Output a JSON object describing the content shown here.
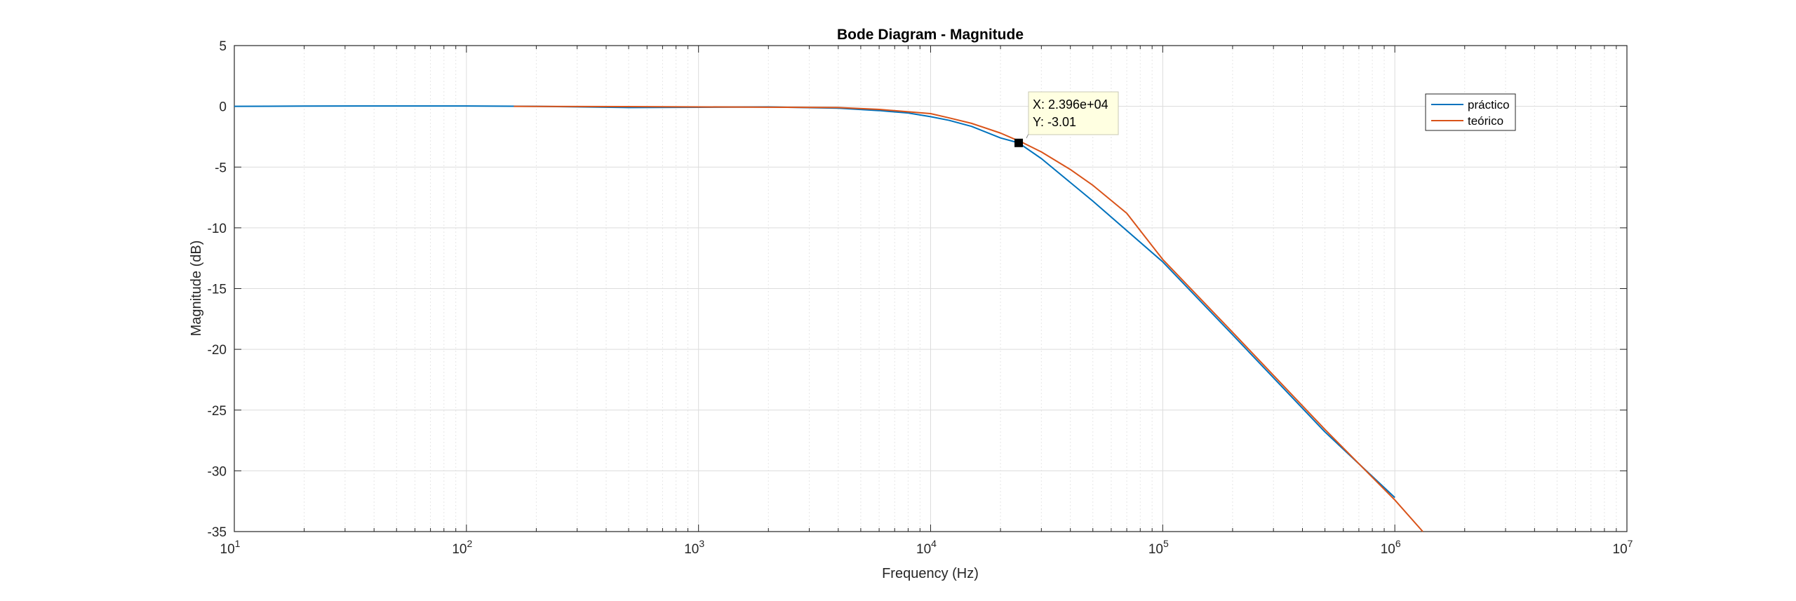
{
  "chart_data": {
    "type": "line",
    "title": "Bode Diagram - Magnitude",
    "xlabel": "Frequency (Hz)",
    "ylabel": "Magnitude (dB)",
    "xscale": "log",
    "xlim": [
      10,
      10000000
    ],
    "ylim": [
      -35,
      5
    ],
    "grid": true,
    "minor_grid": true,
    "legend_position": "top-right",
    "x_ticks": [
      {
        "base": "10",
        "exp": "1"
      },
      {
        "base": "10",
        "exp": "2"
      },
      {
        "base": "10",
        "exp": "3"
      },
      {
        "base": "10",
        "exp": "4"
      },
      {
        "base": "10",
        "exp": "5"
      },
      {
        "base": "10",
        "exp": "6"
      },
      {
        "base": "10",
        "exp": "7"
      }
    ],
    "y_ticks": [
      "5",
      "0",
      "-5",
      "-10",
      "-15",
      "-20",
      "-25",
      "-30",
      "-35"
    ],
    "series": [
      {
        "name": "práctico",
        "color": "#0072BD",
        "x": [
          10,
          20,
          50,
          100,
          200,
          500,
          1000,
          2000,
          4000,
          6000,
          8000,
          10000,
          12000,
          15000,
          20000,
          23960,
          30000,
          50000,
          100000,
          200000,
          500000,
          1000000
        ],
        "y": [
          0,
          0.02,
          0.03,
          0.03,
          0.0,
          -0.1,
          -0.08,
          -0.05,
          -0.15,
          -0.35,
          -0.55,
          -0.85,
          -1.15,
          -1.65,
          -2.6,
          -3.01,
          -4.3,
          -7.8,
          -12.8,
          -18.8,
          -26.8,
          -32.2
        ]
      },
      {
        "name": "teórico",
        "color": "#D95319",
        "x": [
          160,
          500,
          1000,
          2000,
          4000,
          6000,
          8000,
          10000,
          12000,
          15000,
          20000,
          25000,
          30000,
          40000,
          50000,
          70000,
          100000,
          200000,
          500000,
          1000000,
          1320000
        ],
        "y": [
          0,
          -0.02,
          -0.05,
          -0.07,
          -0.1,
          -0.25,
          -0.45,
          -0.6,
          -0.95,
          -1.4,
          -2.2,
          -3.0,
          -3.75,
          -5.2,
          -6.5,
          -8.8,
          -12.6,
          -18.6,
          -26.6,
          -32.4,
          -35.0
        ]
      }
    ],
    "datatip": {
      "x": 23960,
      "y": -3.01,
      "x_text": "X: 2.396e+04",
      "y_text": "Y: -3.01"
    }
  }
}
